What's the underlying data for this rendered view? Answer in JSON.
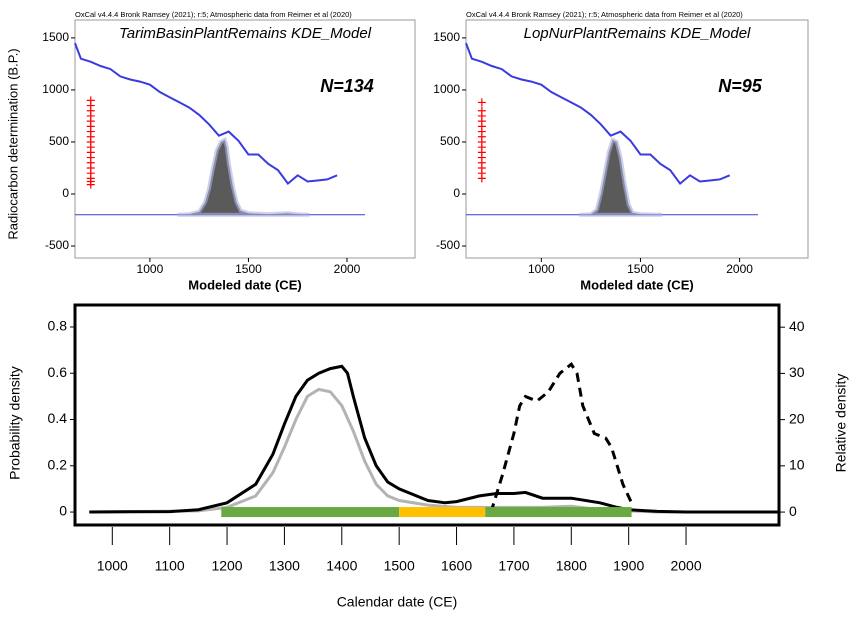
{
  "chart_data": [
    {
      "type": "oxcal",
      "header": "OxCal v4.4.4 Bronk Ramsey (2021); r:5; Atmospheric data from Reimer et al (2020)",
      "title": "TarimBasinPlantRemains KDE_Model",
      "annotation": "N=134",
      "xlabel": "Modeled date (CE)",
      "ylabel": "Radiocarbon determination (B.P.)",
      "xlim": [
        620,
        2345
      ],
      "ylim": [
        -615,
        1672
      ],
      "xticks": [
        1000,
        1500,
        2000
      ],
      "yticks": [
        -500,
        0,
        500,
        1000,
        1500
      ],
      "baseline": -200,
      "curve": {
        "color": "#3a3ae0",
        "x": [
          620,
          650,
          700,
          750,
          800,
          850,
          900,
          950,
          1000,
          1050,
          1100,
          1150,
          1200,
          1250,
          1300,
          1350,
          1400,
          1450,
          1500,
          1550,
          1600,
          1650,
          1700,
          1750,
          1800,
          1850,
          1900,
          1950
        ],
        "values": [
          1450,
          1300,
          1270,
          1230,
          1200,
          1130,
          1100,
          1080,
          1050,
          980,
          930,
          880,
          830,
          760,
          670,
          560,
          600,
          510,
          380,
          380,
          290,
          230,
          100,
          180,
          120,
          130,
          140,
          180
        ]
      },
      "density": {
        "color": "#5a5a5a",
        "x": [
          1150,
          1200,
          1250,
          1280,
          1300,
          1320,
          1340,
          1360,
          1380,
          1390,
          1400,
          1420,
          1440,
          1460,
          1500,
          1550,
          1600,
          1700,
          1750,
          1800
        ],
        "values": [
          -200,
          -195,
          -170,
          -80,
          50,
          250,
          420,
          500,
          520,
          450,
          300,
          80,
          -80,
          -160,
          -185,
          -190,
          -195,
          -185,
          -195,
          -200
        ]
      },
      "measurements": {
        "color": "#ff0000",
        "x": [
          700,
          700,
          700,
          700,
          700,
          700,
          700,
          700,
          700,
          700,
          700,
          700,
          700,
          700,
          700,
          700,
          700,
          700
        ],
        "values": [
          90,
          120,
          150,
          200,
          250,
          300,
          350,
          400,
          450,
          500,
          550,
          600,
          650,
          700,
          750,
          800,
          850,
          900
        ]
      }
    },
    {
      "type": "oxcal",
      "header": "OxCal v4.4.4 Bronk Ramsey (2021); r:5; Atmospheric data from Reimer et al (2020)",
      "title": "LopNurPlantRemains KDE_Model",
      "annotation": "N=95",
      "xlabel": "Modeled date (CE)",
      "xlim": [
        620,
        2345
      ],
      "ylim": [
        -615,
        1672
      ],
      "xticks": [
        1000,
        1500,
        2000
      ],
      "yticks": [
        -500,
        0,
        500,
        1000,
        1500
      ],
      "baseline": -200,
      "curve": {
        "color": "#3a3ae0",
        "x": [
          620,
          650,
          700,
          750,
          800,
          850,
          900,
          950,
          1000,
          1050,
          1100,
          1150,
          1200,
          1250,
          1300,
          1350,
          1400,
          1450,
          1500,
          1550,
          1600,
          1650,
          1700,
          1750,
          1800,
          1850,
          1900,
          1950
        ],
        "values": [
          1450,
          1300,
          1270,
          1230,
          1200,
          1130,
          1100,
          1080,
          1050,
          980,
          930,
          880,
          830,
          760,
          670,
          560,
          600,
          510,
          380,
          380,
          290,
          230,
          100,
          180,
          120,
          130,
          140,
          180
        ]
      },
      "density": {
        "color": "#5a5a5a",
        "x": [
          1200,
          1250,
          1280,
          1300,
          1320,
          1340,
          1360,
          1380,
          1400,
          1420,
          1440,
          1460,
          1500,
          1600
        ],
        "values": [
          -200,
          -195,
          -150,
          0,
          200,
          400,
          520,
          500,
          350,
          100,
          -100,
          -180,
          -195,
          -200
        ]
      },
      "measurements": {
        "color": "#ff0000",
        "x": [
          700,
          700,
          700,
          700,
          700,
          700,
          700,
          700,
          700,
          700,
          700,
          700,
          700,
          700,
          700
        ],
        "values": [
          150,
          200,
          250,
          300,
          350,
          400,
          450,
          500,
          550,
          600,
          650,
          700,
          750,
          800,
          880
        ]
      }
    },
    {
      "type": "line",
      "xlabel": "Calendar date (CE)",
      "ylabel": "Probability density",
      "y2label": "Relative density",
      "xlim": [
        935,
        2162
      ],
      "ylim": [
        -0.056,
        0.895
      ],
      "y2lim": [
        -2.8,
        44.8
      ],
      "xticks": [
        1000,
        1100,
        1200,
        1300,
        1400,
        1500,
        1600,
        1700,
        1800,
        1900,
        2000
      ],
      "yticks": [
        0,
        0.2,
        0.4,
        0.6,
        0.8
      ],
      "y2ticks": [
        0,
        10,
        20,
        30,
        40
      ],
      "series": [
        {
          "color": "#b3b3b3",
          "x": [
            960,
            1150,
            1200,
            1250,
            1280,
            1300,
            1320,
            1340,
            1360,
            1380,
            1400,
            1420,
            1440,
            1460,
            1480,
            1500,
            1550,
            1600,
            1650,
            1700,
            1750,
            1800,
            1850,
            1900,
            1950,
            2160
          ],
          "values": [
            0,
            0.005,
            0.02,
            0.07,
            0.17,
            0.28,
            0.4,
            0.5,
            0.53,
            0.52,
            0.46,
            0.35,
            0.22,
            0.12,
            0.07,
            0.05,
            0.03,
            0.02,
            0.02,
            0.02,
            0.02,
            0.025,
            0.01,
            0.005,
            0,
            0
          ]
        },
        {
          "color": "#000000",
          "x": [
            960,
            1100,
            1150,
            1200,
            1250,
            1280,
            1300,
            1320,
            1340,
            1360,
            1380,
            1400,
            1410,
            1420,
            1440,
            1460,
            1480,
            1500,
            1520,
            1550,
            1580,
            1600,
            1640,
            1670,
            1700,
            1720,
            1750,
            1800,
            1850,
            1880,
            1900,
            1950,
            2000,
            2160
          ],
          "values": [
            0,
            0.002,
            0.01,
            0.04,
            0.12,
            0.25,
            0.38,
            0.5,
            0.57,
            0.6,
            0.62,
            0.63,
            0.6,
            0.5,
            0.32,
            0.2,
            0.13,
            0.1,
            0.08,
            0.05,
            0.04,
            0.045,
            0.07,
            0.08,
            0.08,
            0.085,
            0.06,
            0.06,
            0.04,
            0.02,
            0.01,
            0.003,
            0,
            0
          ]
        },
        {
          "color": "#000000",
          "axis": "y2",
          "dashed": true,
          "x": [
            1660,
            1680,
            1700,
            1710,
            1720,
            1740,
            1760,
            1780,
            1800,
            1810,
            1820,
            1840,
            1860,
            1870,
            1890,
            1905
          ],
          "values": [
            0,
            8,
            17,
            23,
            25,
            24,
            26,
            30,
            32,
            30,
            23,
            17,
            16,
            14,
            6,
            2
          ]
        }
      ],
      "periods": [
        {
          "start": 1190,
          "end": 1500,
          "color": "#6aa842"
        },
        {
          "start": 1500,
          "end": 1650,
          "color": "#ffc000"
        },
        {
          "start": 1650,
          "end": 1905,
          "color": "#6aa842"
        }
      ]
    }
  ]
}
